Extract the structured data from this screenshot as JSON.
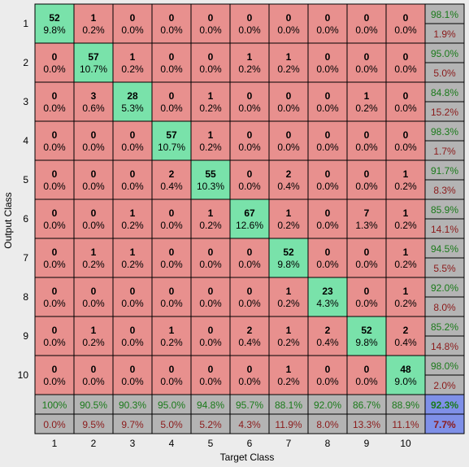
{
  "chart_data": {
    "type": "heatmap",
    "ylabel": "Output Class",
    "xlabel": "Target Class",
    "row_labels": [
      "1",
      "2",
      "3",
      "4",
      "5",
      "6",
      "7",
      "8",
      "9",
      "10"
    ],
    "col_labels": [
      "1",
      "2",
      "3",
      "4",
      "5",
      "6",
      "7",
      "8",
      "9",
      "10"
    ],
    "counts": [
      [
        52,
        1,
        0,
        0,
        0,
        0,
        0,
        0,
        0,
        0
      ],
      [
        0,
        57,
        1,
        0,
        0,
        1,
        1,
        0,
        0,
        0
      ],
      [
        0,
        3,
        28,
        0,
        1,
        0,
        0,
        0,
        1,
        0
      ],
      [
        0,
        0,
        0,
        57,
        1,
        0,
        0,
        0,
        0,
        0
      ],
      [
        0,
        0,
        0,
        2,
        55,
        0,
        2,
        0,
        0,
        1
      ],
      [
        0,
        0,
        1,
        0,
        1,
        67,
        1,
        0,
        7,
        1
      ],
      [
        0,
        1,
        1,
        0,
        0,
        0,
        52,
        0,
        0,
        1
      ],
      [
        0,
        0,
        0,
        0,
        0,
        0,
        1,
        23,
        0,
        1
      ],
      [
        0,
        1,
        0,
        1,
        0,
        2,
        1,
        2,
        52,
        2
      ],
      [
        0,
        0,
        0,
        0,
        0,
        0,
        1,
        0,
        0,
        48
      ]
    ],
    "percents": [
      [
        "9.8%",
        "0.2%",
        "0.0%",
        "0.0%",
        "0.0%",
        "0.0%",
        "0.0%",
        "0.0%",
        "0.0%",
        "0.0%"
      ],
      [
        "0.0%",
        "10.7%",
        "0.2%",
        "0.0%",
        "0.0%",
        "0.2%",
        "0.2%",
        "0.0%",
        "0.0%",
        "0.0%"
      ],
      [
        "0.0%",
        "0.6%",
        "5.3%",
        "0.0%",
        "0.2%",
        "0.0%",
        "0.0%",
        "0.0%",
        "0.2%",
        "0.0%"
      ],
      [
        "0.0%",
        "0.0%",
        "0.0%",
        "10.7%",
        "0.2%",
        "0.0%",
        "0.0%",
        "0.0%",
        "0.0%",
        "0.0%"
      ],
      [
        "0.0%",
        "0.0%",
        "0.0%",
        "0.4%",
        "10.3%",
        "0.0%",
        "0.4%",
        "0.0%",
        "0.0%",
        "0.2%"
      ],
      [
        "0.0%",
        "0.0%",
        "0.2%",
        "0.0%",
        "0.2%",
        "12.6%",
        "0.2%",
        "0.0%",
        "1.3%",
        "0.2%"
      ],
      [
        "0.0%",
        "0.2%",
        "0.2%",
        "0.0%",
        "0.0%",
        "0.0%",
        "9.8%",
        "0.0%",
        "0.0%",
        "0.2%"
      ],
      [
        "0.0%",
        "0.0%",
        "0.0%",
        "0.0%",
        "0.0%",
        "0.0%",
        "0.2%",
        "4.3%",
        "0.0%",
        "0.2%"
      ],
      [
        "0.0%",
        "0.2%",
        "0.0%",
        "0.2%",
        "0.0%",
        "0.4%",
        "0.2%",
        "0.4%",
        "9.8%",
        "0.4%"
      ],
      [
        "0.0%",
        "0.0%",
        "0.0%",
        "0.0%",
        "0.0%",
        "0.0%",
        "0.2%",
        "0.0%",
        "0.0%",
        "9.0%"
      ]
    ],
    "row_summary": [
      [
        "98.1%",
        "1.9%"
      ],
      [
        "95.0%",
        "5.0%"
      ],
      [
        "84.8%",
        "15.2%"
      ],
      [
        "98.3%",
        "1.7%"
      ],
      [
        "91.7%",
        "8.3%"
      ],
      [
        "85.9%",
        "14.1%"
      ],
      [
        "94.5%",
        "5.5%"
      ],
      [
        "92.0%",
        "8.0%"
      ],
      [
        "85.2%",
        "14.8%"
      ],
      [
        "98.0%",
        "2.0%"
      ]
    ],
    "col_summary": [
      [
        "100%",
        "0.0%"
      ],
      [
        "90.5%",
        "9.5%"
      ],
      [
        "90.3%",
        "9.7%"
      ],
      [
        "95.0%",
        "5.0%"
      ],
      [
        "94.8%",
        "5.2%"
      ],
      [
        "95.7%",
        "4.3%"
      ],
      [
        "88.1%",
        "11.9%"
      ],
      [
        "92.0%",
        "8.0%"
      ],
      [
        "86.7%",
        "13.3%"
      ],
      [
        "88.9%",
        "11.1%"
      ]
    ],
    "overall": [
      "92.3%",
      "7.7%"
    ]
  },
  "colors": {
    "diagonal": "#79e2aa",
    "off_diagonal": "#e8908e",
    "summary": "#b4b4b4",
    "overall": "#7f90e8",
    "correct_text": "#1a7a1a",
    "wrong_text": "#8b1a1a",
    "background": "#ececec"
  }
}
